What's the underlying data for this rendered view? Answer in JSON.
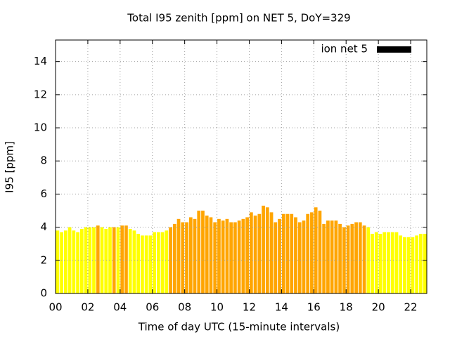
{
  "chart_data": {
    "type": "histogram",
    "title": "Total I95 zenith [ppm] on NET 5, DoY=329",
    "x_label": "Time of day UTC (15-minute intervals)",
    "y_label": "I95 [ppm]",
    "bins": [
      0,
      0.25,
      0.5,
      0.75,
      1,
      1.25,
      1.5,
      1.75,
      2,
      2.25,
      2.5,
      2.75,
      3,
      3.25,
      3.5,
      3.75,
      4,
      4.25,
      4.5,
      4.75,
      5,
      5.25,
      5.5,
      5.75,
      6,
      6.25,
      6.5,
      6.75,
      7,
      7.25,
      7.5,
      7.75,
      8,
      8.25,
      8.5,
      8.75,
      9,
      9.25,
      9.5,
      9.75,
      10,
      10.25,
      10.5,
      10.75,
      11,
      11.25,
      11.5,
      11.75,
      12,
      12.25,
      12.5,
      12.75,
      13,
      13.25,
      13.5,
      13.75,
      14,
      14.25,
      14.5,
      14.75,
      15,
      15.25,
      15.5,
      15.75,
      16,
      16.25,
      16.5,
      16.75,
      17,
      17.25,
      17.5,
      17.75,
      18,
      18.25,
      18.5,
      18.75,
      19,
      19.25,
      19.5,
      19.75,
      20,
      20.25,
      20.5,
      20.75,
      21,
      21.25,
      21.5,
      21.75,
      22,
      22.25,
      22.5,
      22.75,
      23
    ],
    "series": [
      {
        "name": "ion net 5",
        "color": "#000000",
        "values": [
          3.8,
          3.7,
          3.8,
          4.0,
          3.8,
          3.7,
          3.9,
          4.0,
          4.0,
          4.0,
          4.1,
          4.0,
          3.9,
          4.0,
          4.0,
          4.0,
          4.1,
          4.1,
          3.9,
          3.8,
          3.6,
          3.5,
          3.5,
          3.5,
          3.7,
          3.7,
          3.7,
          3.8,
          4.0,
          4.2,
          4.5,
          4.3,
          4.3,
          4.6,
          4.5,
          5.0,
          5.0,
          4.7,
          4.6,
          4.3,
          4.5,
          4.4,
          4.5,
          4.3,
          4.3,
          4.4,
          4.5,
          4.6,
          4.9,
          4.7,
          4.8,
          5.3,
          5.2,
          4.9,
          4.3,
          4.5,
          4.8,
          4.8,
          4.8,
          4.6,
          4.3,
          4.4,
          4.8,
          4.9,
          5.2,
          5.0,
          4.2,
          4.4,
          4.4,
          4.4,
          4.2,
          4.0,
          4.1,
          4.2,
          4.3,
          4.3,
          4.1,
          4.0,
          3.6,
          3.7,
          3.6,
          3.7,
          3.7,
          3.7,
          3.7,
          3.5,
          3.4,
          3.4,
          3.4,
          3.5,
          3.6,
          3.6
        ],
        "colors": [
          "#ffff00",
          "#ffff00",
          "#ffff00",
          "#ffff00",
          "#ffff00",
          "#ffff00",
          "#ffff00",
          "#ffff00",
          "#ffff00",
          "#ffff00",
          "#ffa500",
          "#ffff00",
          "#ffff00",
          "#ffff00",
          "#ffa500",
          "#ffff00",
          "#ffa500",
          "#ffa500",
          "#ffff00",
          "#ffff00",
          "#ffff00",
          "#ffff00",
          "#ffff00",
          "#ffff00",
          "#ffff00",
          "#ffff00",
          "#ffff00",
          "#ffff00",
          "#ffa500",
          "#ffa500",
          "#ffa500",
          "#ffa500",
          "#ffa500",
          "#ffa500",
          "#ffa500",
          "#ffa500",
          "#ffa500",
          "#ffa500",
          "#ffa500",
          "#ffa500",
          "#ffa500",
          "#ffa500",
          "#ffa500",
          "#ffa500",
          "#ffa500",
          "#ffa500",
          "#ffa500",
          "#ffa500",
          "#ffa500",
          "#ffa500",
          "#ffa500",
          "#ffa500",
          "#ffa500",
          "#ffa500",
          "#ffa500",
          "#ffa500",
          "#ffa500",
          "#ffa500",
          "#ffa500",
          "#ffa500",
          "#ffa500",
          "#ffa500",
          "#ffa500",
          "#ffa500",
          "#ffa500",
          "#ffa500",
          "#ffa500",
          "#ffa500",
          "#ffa500",
          "#ffa500",
          "#ffa500",
          "#ffa500",
          "#ffa500",
          "#ffa500",
          "#ffa500",
          "#ffa500",
          "#ffa500",
          "#ffff00",
          "#ffff00",
          "#ffff00",
          "#ffff00",
          "#ffff00",
          "#ffff00",
          "#ffff00",
          "#ffff00",
          "#ffff00",
          "#ffff00",
          "#ffff00",
          "#ffff00",
          "#ffff00",
          "#ffff00",
          "#ffff00"
        ]
      }
    ],
    "xlim": [
      0,
      23
    ],
    "xticks": [
      {
        "value": 0,
        "label": "00"
      },
      {
        "value": 2,
        "label": "02"
      },
      {
        "value": 4,
        "label": "04"
      },
      {
        "value": 6,
        "label": "06"
      },
      {
        "value": 8,
        "label": "08"
      },
      10,
      12,
      14,
      16,
      18,
      20,
      22
    ],
    "ylim": [
      0,
      15.3
    ],
    "yticks": [
      0,
      2,
      4,
      6,
      8,
      10,
      12,
      14
    ],
    "grid": true,
    "legend": "top-right"
  }
}
